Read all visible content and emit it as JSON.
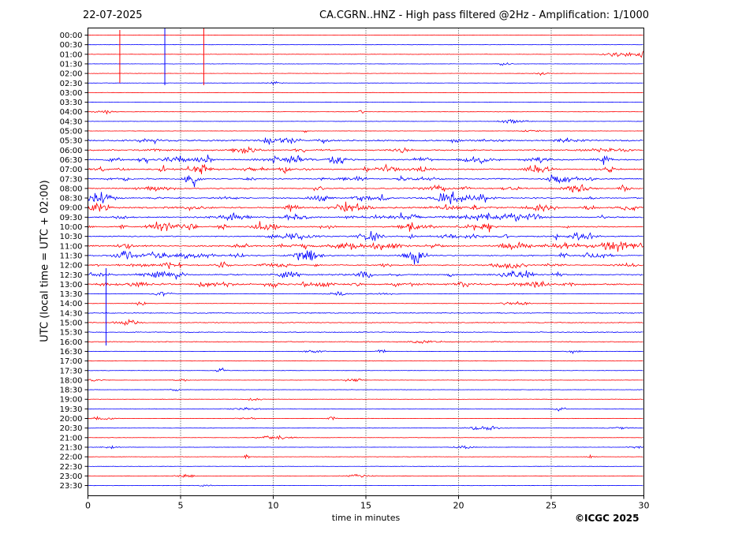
{
  "header": {
    "date": "22-07-2025",
    "title": "CA.CGRN..HNZ - High pass filtered @2Hz - Amplification: 1/1000"
  },
  "footer": {
    "copyright": "©ICGC 2025"
  },
  "chart_data": {
    "type": "line",
    "title": "CA.CGRN..HNZ - High pass filtered @2Hz - Amplification: 1/1000",
    "xlabel": "time in minutes",
    "ylabel": "UTC (local time = UTC + 02:00)",
    "xlim": [
      0,
      30
    ],
    "xticks": [
      0,
      5,
      10,
      15,
      20,
      25,
      30
    ],
    "grid": "vertical dotted lines every 5 minutes",
    "series_colors": [
      "#ff0000",
      "#0000ff"
    ],
    "rows": [
      "00:00",
      "00:30",
      "01:00",
      "01:30",
      "02:00",
      "02:30",
      "03:00",
      "03:30",
      "04:00",
      "04:30",
      "05:00",
      "05:30",
      "06:00",
      "06:30",
      "07:00",
      "07:30",
      "08:00",
      "08:30",
      "09:00",
      "09:30",
      "10:00",
      "10:30",
      "11:00",
      "11:30",
      "12:00",
      "12:30",
      "13:00",
      "13:30",
      "14:00",
      "14:30",
      "15:00",
      "15:30",
      "16:00",
      "16:30",
      "17:00",
      "17:30",
      "18:00",
      "18:30",
      "19:00",
      "19:30",
      "20:00",
      "20:30",
      "21:00",
      "21:30",
      "22:00",
      "22:30",
      "23:00",
      "23:30"
    ]
  }
}
